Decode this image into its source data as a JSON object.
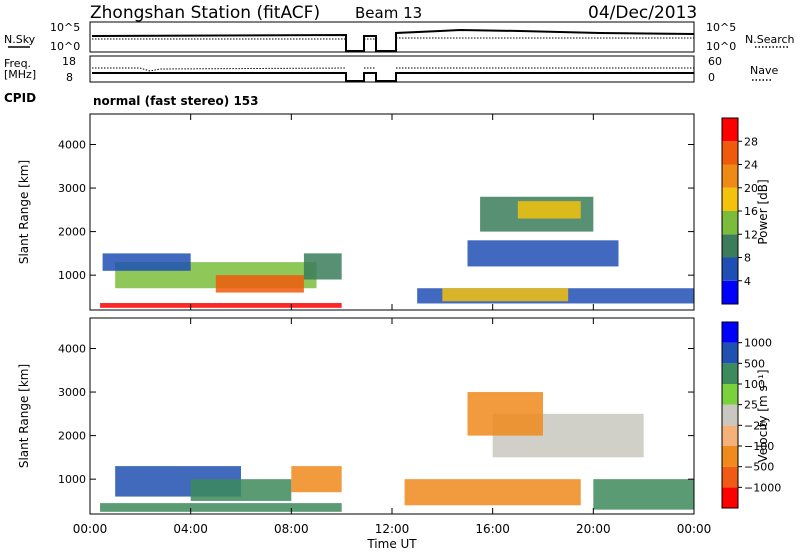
{
  "header": {
    "station": "Zhongshan Station (fitACF)",
    "beam": "Beam 13",
    "date": "04/Dec/2013"
  },
  "top_panels": {
    "nsky_label": "N.Sky",
    "nsearch_label": "N.Search",
    "nsky_ticks": [
      "10^5",
      "10^0"
    ],
    "nsearch_ticks": [
      "10^5",
      "10^0"
    ],
    "freq_label": "Freq.",
    "freq_unit": "[MHz]",
    "freq_ticks": [
      "18",
      "8"
    ],
    "nave_label": "Nave",
    "nave_ticks": [
      "60",
      "0"
    ],
    "cpid_label": "CPID",
    "cpid_text": "normal (fast stereo) 153"
  },
  "colors": {
    "power": [
      "#0000ff",
      "#1f4fb4",
      "#3b7d5b",
      "#7bbd3b",
      "#f4c20d",
      "#f08a17",
      "#f05a0c",
      "#ff0000"
    ],
    "velocity": [
      "#ff0000",
      "#f05a14",
      "#f08a1c",
      "#f4b27a",
      "#c8c8c0",
      "#7ad13c",
      "#3d8a5c",
      "#2050b0",
      "#0000ff"
    ],
    "frame": "#000000"
  },
  "chart_data": [
    {
      "type": "heatmap",
      "name": "power-panel",
      "ylabel": "Slant Range [km]",
      "yticks": [
        "1000",
        "2000",
        "3000",
        "4000"
      ],
      "ylim": [
        200,
        4700
      ],
      "xlim": [
        0,
        24
      ],
      "colorbar_label": "Power [dB]",
      "colorbar_ticks": [
        "4",
        "8",
        "12",
        "16",
        "20",
        "24",
        "28"
      ],
      "regions": [
        {
          "t0": 0.4,
          "t1": 10.0,
          "r0": 250,
          "r1": 360,
          "level": 7
        },
        {
          "t0": 1.0,
          "t1": 9.0,
          "r0": 700,
          "r1": 1300,
          "level": 3
        },
        {
          "t0": 5.0,
          "t1": 8.5,
          "r0": 600,
          "r1": 1000,
          "level": 6
        },
        {
          "t0": 0.5,
          "t1": 4.0,
          "r0": 1100,
          "r1": 1500,
          "level": 1
        },
        {
          "t0": 8.5,
          "t1": 10.0,
          "r0": 900,
          "r1": 1500,
          "level": 2
        },
        {
          "t0": 13.0,
          "t1": 24.0,
          "r0": 350,
          "r1": 700,
          "level": 1
        },
        {
          "t0": 14.0,
          "t1": 19.0,
          "r0": 400,
          "r1": 700,
          "level": 4
        },
        {
          "t0": 15.0,
          "t1": 21.0,
          "r0": 1200,
          "r1": 1800,
          "level": 1
        },
        {
          "t0": 15.5,
          "t1": 20.0,
          "r0": 2000,
          "r1": 2800,
          "level": 2
        },
        {
          "t0": 17.0,
          "t1": 19.5,
          "r0": 2300,
          "r1": 2700,
          "level": 4
        }
      ]
    },
    {
      "type": "heatmap",
      "name": "velocity-panel",
      "ylabel": "Slant Range [km]",
      "yticks": [
        "1000",
        "2000",
        "3000",
        "4000"
      ],
      "ylim": [
        200,
        4700
      ],
      "xlim": [
        0,
        24
      ],
      "colorbar_label": "Velocity [m s⁻¹]",
      "colorbar_ticks": [
        "1000",
        "500",
        "100",
        "25",
        "−25",
        "−100",
        "−500",
        "−1000"
      ],
      "xticks": [
        "00:00",
        "04:00",
        "08:00",
        "12:00",
        "16:00",
        "20:00",
        "00:00"
      ],
      "xlabel": "Time UT",
      "regions": [
        {
          "t0": 0.4,
          "t1": 10.0,
          "r0": 250,
          "r1": 450,
          "level": 6
        },
        {
          "t0": 1.0,
          "t1": 6.0,
          "r0": 600,
          "r1": 1300,
          "level": 7
        },
        {
          "t0": 4.0,
          "t1": 8.0,
          "r0": 500,
          "r1": 1000,
          "level": 6
        },
        {
          "t0": 8.0,
          "t1": 10.0,
          "r0": 700,
          "r1": 1300,
          "level": 2
        },
        {
          "t0": 12.5,
          "t1": 19.5,
          "r0": 400,
          "r1": 1000,
          "level": 2
        },
        {
          "t0": 16.0,
          "t1": 22.0,
          "r0": 1500,
          "r1": 2500,
          "level": 4
        },
        {
          "t0": 15.0,
          "t1": 18.0,
          "r0": 2000,
          "r1": 3000,
          "level": 2
        },
        {
          "t0": 20.0,
          "t1": 24.0,
          "r0": 300,
          "r1": 1000,
          "level": 6
        }
      ]
    }
  ]
}
